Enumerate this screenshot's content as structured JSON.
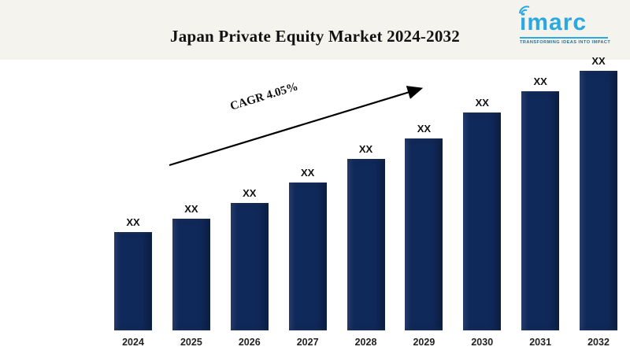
{
  "header": {
    "title": "Japan Private Equity Market 2024-2032",
    "logo": {
      "name": "imarc",
      "tagline": "TRANSFORMING IDEAS INTO IMPACT",
      "brand_color": "#2aa9e0"
    }
  },
  "chart_data": {
    "type": "bar",
    "title": "Japan Private Equity Market 2024-2032",
    "categories": [
      "2024",
      "2025",
      "2026",
      "2027",
      "2028",
      "2029",
      "2030",
      "2031",
      "2032"
    ],
    "values": [
      38,
      43,
      49,
      57,
      66,
      74,
      84,
      92,
      100
    ],
    "bar_labels": [
      "XX",
      "XX",
      "XX",
      "XX",
      "XX",
      "XX",
      "XX",
      "XX",
      "XX"
    ],
    "value_note": "actual market values masked as XX on chart; values[] are relative bar heights as percent of tallest bar",
    "annotation": "CAGR 4.05%",
    "bar_color": "#10295b",
    "xlabel": "",
    "ylabel": "",
    "legend": "none",
    "grid": false
  }
}
